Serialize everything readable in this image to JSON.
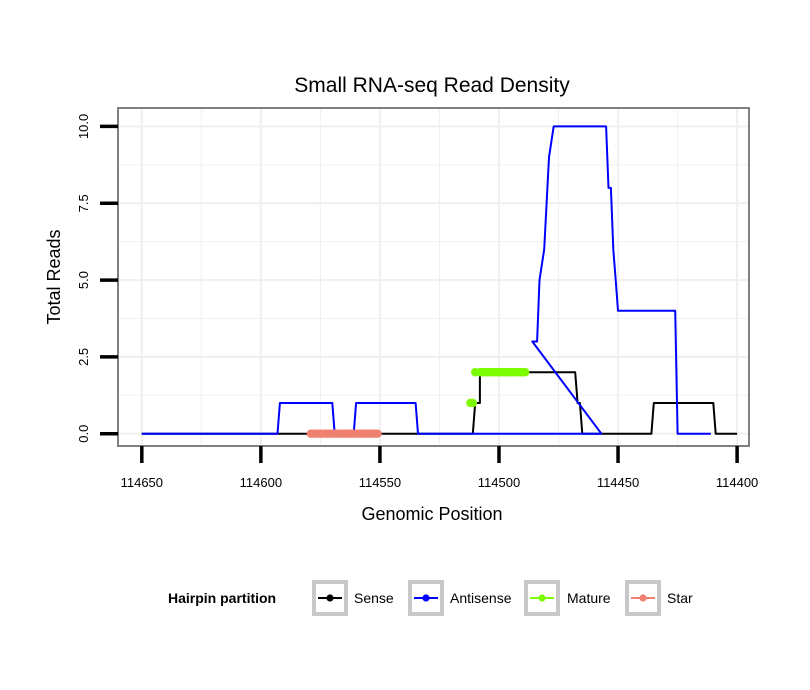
{
  "chart_data": {
    "type": "line",
    "title": "Small RNA-seq Read Density",
    "xlabel": "Genomic Position",
    "ylabel": "Total Reads",
    "xlim": [
      114660,
      114395
    ],
    "x_reversed": true,
    "ylim": [
      -0.4,
      10.6
    ],
    "x_ticks": [
      114650,
      114600,
      114550,
      114500,
      114450,
      114400
    ],
    "x_tick_labels": [
      "114650",
      "114600",
      "114550",
      "114500",
      "114450",
      "114400"
    ],
    "y_ticks": [
      0,
      2.5,
      5,
      7.5,
      10
    ],
    "y_tick_labels": [
      "0.0",
      "2.5",
      "5.0",
      "7.5",
      "10.0"
    ],
    "grid": true,
    "legend": {
      "title": "Hairpin partition",
      "position": "bottom",
      "entries": [
        "Sense",
        "Antisense",
        "Mature",
        "Star"
      ]
    },
    "colors": {
      "Sense": "#000000",
      "Antisense": "#0000ff",
      "Mature": "#7cfc00",
      "Star": "#f08070",
      "panel_border": "#808080",
      "grid": "#f0f0f0"
    },
    "series": [
      {
        "name": "Sense",
        "kind": "line",
        "x": [
          114650,
          114511,
          114510,
          114508,
          114508,
          114468,
          114467,
          114466,
          114465,
          114436,
          114435,
          114410,
          114409,
          114400
        ],
        "y": [
          0,
          0,
          1,
          1,
          2,
          2,
          1,
          1,
          0,
          0,
          1,
          1,
          0,
          0
        ]
      },
      {
        "name": "Antisense",
        "kind": "line",
        "x": [
          114650,
          114593,
          114592,
          114570,
          114569,
          114561,
          114560,
          114535,
          114534,
          114533,
          114534,
          114533,
          114532,
          114481,
          114480,
          114458,
          114457,
          114486,
          114484,
          114483,
          114481,
          114481,
          114479,
          114477,
          114476,
          114455,
          114454,
          114453,
          114452,
          114451,
          114450,
          114448,
          114426,
          114425,
          114411
        ],
        "y": [
          0,
          0,
          1,
          1,
          0,
          0,
          1,
          1,
          0,
          0,
          0,
          0,
          0,
          0,
          0,
          0,
          0,
          3,
          3,
          5,
          6,
          6,
          9,
          10,
          10,
          10,
          8,
          8,
          6,
          5,
          4,
          4,
          4,
          0,
          0
        ]
      },
      {
        "name": "Mature",
        "kind": "points",
        "x": [
          114512,
          114511,
          114510,
          114508,
          114507,
          114506,
          114505,
          114504,
          114503,
          114502,
          114501,
          114500,
          114499,
          114498,
          114497,
          114496,
          114495,
          114494,
          114493,
          114492,
          114491,
          114490,
          114489
        ],
        "y": [
          1,
          1,
          2,
          2,
          2,
          2,
          2,
          2,
          2,
          2,
          2,
          2,
          2,
          2,
          2,
          2,
          2,
          2,
          2,
          2,
          2,
          2,
          2
        ]
      },
      {
        "name": "Star",
        "kind": "points",
        "x": [
          114579,
          114578,
          114577,
          114576,
          114575,
          114574,
          114573,
          114572,
          114571,
          114570,
          114569,
          114568,
          114567,
          114566,
          114565,
          114564,
          114563,
          114562,
          114561,
          114560,
          114559,
          114558,
          114557,
          114556,
          114555,
          114554,
          114553,
          114552,
          114551
        ],
        "y": [
          0,
          0,
          0,
          0,
          0,
          0,
          0,
          0,
          0,
          0,
          0,
          0,
          0,
          0,
          0,
          0,
          0,
          0,
          0,
          0,
          0,
          0,
          0,
          0,
          0,
          0,
          0,
          0,
          0
        ]
      }
    ]
  }
}
